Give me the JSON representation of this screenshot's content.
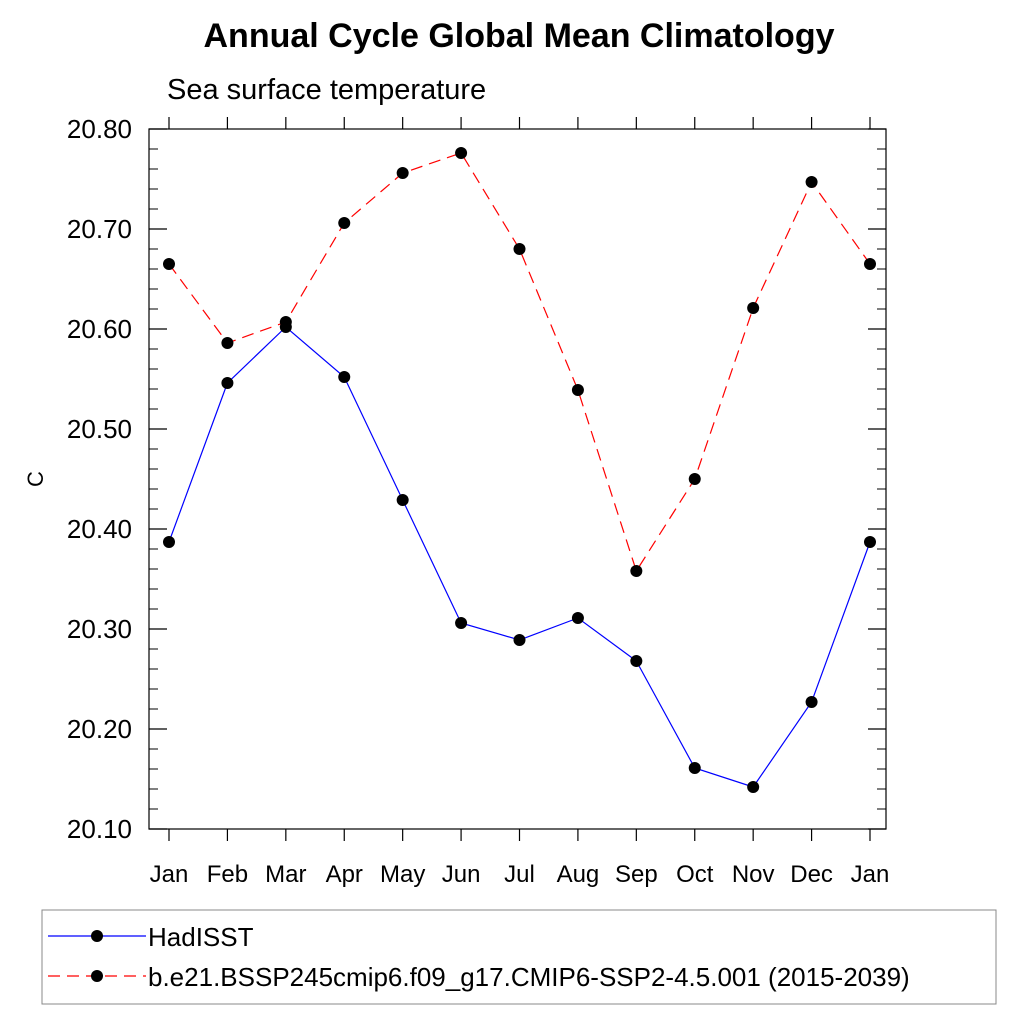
{
  "chart_data": {
    "type": "line",
    "title": "Annual Cycle Global Mean Climatology",
    "subtitle": "Sea surface temperature",
    "xlabel": "",
    "ylabel": "C",
    "categories": [
      "Jan",
      "Feb",
      "Mar",
      "Apr",
      "May",
      "Jun",
      "Jul",
      "Aug",
      "Sep",
      "Oct",
      "Nov",
      "Dec",
      "Jan"
    ],
    "ylim": [
      20.1,
      20.8
    ],
    "yticks": [
      "20.10",
      "20.20",
      "20.30",
      "20.40",
      "20.50",
      "20.60",
      "20.70",
      "20.80"
    ],
    "grid": false,
    "legend_position": "bottom",
    "series": [
      {
        "name": "HadISST",
        "color": "#0000ff",
        "dash": "solid",
        "values": [
          20.387,
          20.546,
          20.602,
          20.552,
          20.429,
          20.306,
          20.289,
          20.311,
          20.268,
          20.161,
          20.142,
          20.227,
          20.387
        ]
      },
      {
        "name": "b.e21.BSSP245cmip6.f09_g17.CMIP6-SSP2-4.5.001 (2015-2039)",
        "color": "#ff0000",
        "dash": "dashed",
        "values": [
          20.665,
          20.586,
          20.607,
          20.706,
          20.756,
          20.776,
          20.68,
          20.539,
          20.358,
          20.45,
          20.621,
          20.747,
          20.665
        ]
      }
    ]
  }
}
